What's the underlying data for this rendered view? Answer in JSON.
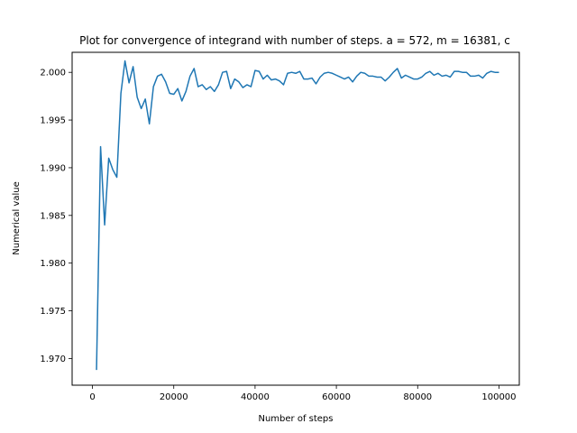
{
  "chart_data": {
    "type": "line",
    "title": "Plot for convergence of integrand with number of steps. a = 572, m = 16381, c",
    "xlabel": "Number of steps",
    "ylabel": "Numerical value",
    "xlim": [
      -5000,
      105000
    ],
    "ylim": [
      1.9672,
      2.0021
    ],
    "x_ticks": [
      0,
      20000,
      40000,
      60000,
      80000,
      100000
    ],
    "x_tick_labels": [
      "0",
      "20000",
      "40000",
      "60000",
      "80000",
      "100000"
    ],
    "y_ticks": [
      1.97,
      1.975,
      1.98,
      1.985,
      1.99,
      1.995,
      2.0
    ],
    "y_tick_labels": [
      "1.970",
      "1.975",
      "1.980",
      "1.985",
      "1.990",
      "1.995",
      "2.000"
    ],
    "grid": false,
    "line_color": "#1f77b4",
    "series": [
      {
        "x": [
          1000,
          2000,
          3000,
          4000,
          5000,
          6000,
          7000,
          8000,
          9000,
          10000,
          11000,
          12000,
          13000,
          14000,
          15000,
          16000,
          17000,
          18000,
          19000,
          20000,
          21000,
          22000,
          23000,
          24000,
          25000,
          26000,
          27000,
          28000,
          29000,
          30000,
          31000,
          32000,
          33000,
          34000,
          35000,
          36000,
          37000,
          38000,
          39000,
          40000,
          41000,
          42000,
          43000,
          44000,
          45000,
          46000,
          47000,
          48000,
          49000,
          50000,
          51000,
          52000,
          53000,
          54000,
          55000,
          56000,
          57000,
          58000,
          59000,
          60000,
          61000,
          62000,
          63000,
          64000,
          65000,
          66000,
          67000,
          68000,
          69000,
          70000,
          71000,
          72000,
          73000,
          74000,
          75000,
          76000,
          77000,
          78000,
          79000,
          80000,
          81000,
          82000,
          83000,
          84000,
          85000,
          86000,
          87000,
          88000,
          89000,
          90000,
          91000,
          92000,
          93000,
          94000,
          95000,
          96000,
          97000,
          98000,
          99000,
          100000
        ],
        "y": [
          1.9688,
          1.9922,
          1.984,
          1.991,
          1.9898,
          1.989,
          1.9978,
          2.0012,
          1.9989,
          2.0006,
          1.9974,
          1.9962,
          1.9972,
          1.9946,
          1.9985,
          1.9996,
          1.9998,
          1.999,
          1.9978,
          1.9977,
          1.9983,
          1.997,
          1.998,
          1.9996,
          2.0004,
          1.9985,
          1.9987,
          1.9982,
          1.9985,
          1.998,
          1.9987,
          2.0,
          2.0001,
          1.9983,
          1.9993,
          1.999,
          1.9984,
          1.9987,
          1.9985,
          2.0002,
          2.0001,
          1.9993,
          1.9997,
          1.9992,
          1.9993,
          1.9991,
          1.9987,
          1.9999,
          2.0,
          1.9999,
          2.0001,
          1.9993,
          1.9993,
          1.9994,
          1.9988,
          1.9995,
          1.9999,
          2.0,
          1.9999,
          1.9997,
          1.9995,
          1.9993,
          1.9995,
          1.999,
          1.9996,
          2.0,
          1.9999,
          1.9996,
          1.9996,
          1.9995,
          1.9995,
          1.9991,
          1.9995,
          2.0,
          2.0004,
          1.9994,
          1.9997,
          1.9995,
          1.9993,
          1.9993,
          1.9995,
          1.9999,
          2.0001,
          1.9997,
          1.9999,
          1.9996,
          1.9997,
          1.9995,
          2.0001,
          2.0001,
          2.0,
          2.0,
          1.9996,
          1.9996,
          1.9997,
          1.9994,
          1.9999,
          2.0001,
          2.0,
          2.0
        ]
      }
    ]
  }
}
